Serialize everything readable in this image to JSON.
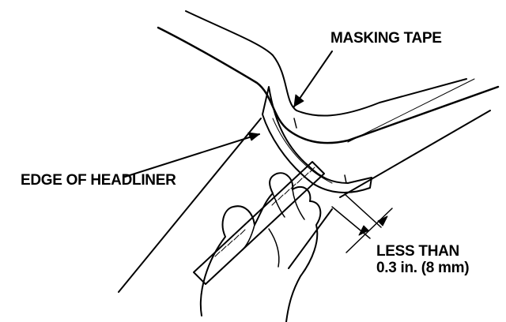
{
  "labels": {
    "masking_tape": "MASKING TAPE",
    "edge_of_headliner": "EDGE OF HEADLINER",
    "less_than_line1": "LESS THAN",
    "less_than_line2": "0.3 in. (8 mm)"
  },
  "colors": {
    "ink": "#000000",
    "paper": "#ffffff"
  }
}
